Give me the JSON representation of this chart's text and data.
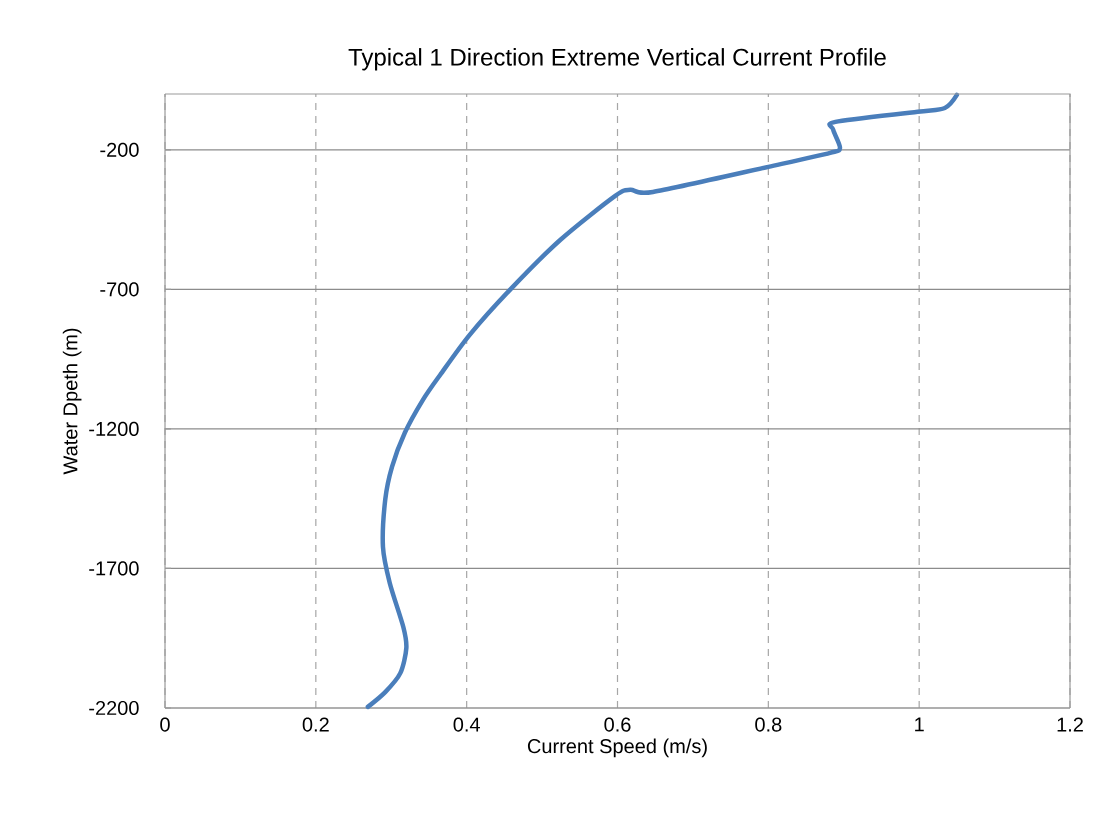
{
  "chart_data": {
    "type": "line",
    "title": "Typical 1 Direction  Extreme  Vertical Current Profile",
    "xlabel": "Current Speed (m/s)",
    "ylabel": "Water Dpeth (m)",
    "xlim": [
      0,
      1.2
    ],
    "ylim": [
      -2200,
      0
    ],
    "xticks": [
      0,
      0.2,
      0.4,
      0.6,
      0.8,
      1,
      1.2
    ],
    "yticks": [
      -200,
      -700,
      -1200,
      -1700,
      -2200
    ],
    "grid": true,
    "marker": "none",
    "line_style": "solid",
    "series": [
      {
        "color": "#4a7ebb",
        "x": [
          1.05,
          1.034,
          0.998,
          0.889,
          0.886,
          0.895,
          0.882,
          0.8,
          0.647,
          0.617,
          0.597,
          0.524,
          0.458,
          0.404,
          0.365,
          0.342,
          0.318,
          0.301,
          0.292,
          0.289,
          0.298,
          0.316,
          0.32,
          0.312,
          0.292,
          0.269
        ],
        "values": [
          -3,
          -50,
          -64,
          -100,
          -128,
          -193,
          -211,
          -261,
          -351,
          -343,
          -365,
          -523,
          -700,
          -863,
          -1006,
          -1096,
          -1214,
          -1336,
          -1454,
          -1623,
          -1752,
          -1910,
          -1985,
          -2075,
          -2143,
          -2196
        ]
      }
    ]
  }
}
